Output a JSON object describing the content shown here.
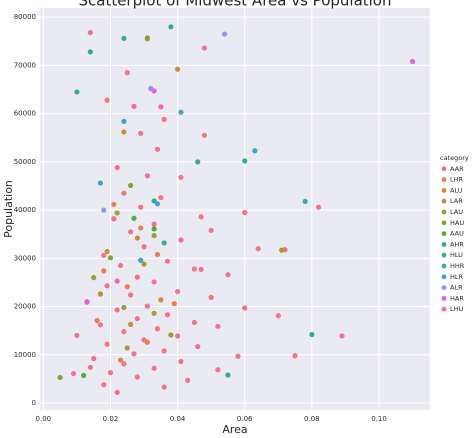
{
  "chart_data": {
    "type": "scatter",
    "title": "Scatterplot of Midwest Area vs Population",
    "x_label": "Area",
    "y_label": "Population",
    "legend_title": "category",
    "legend_position": "right",
    "grid": true,
    "xlim": [
      -0.001,
      0.1152
    ],
    "ylim": [
      -1450,
      81900
    ],
    "xticks": [
      {
        "value": 0,
        "label": "0.00"
      },
      {
        "value": 0.02,
        "label": "0.02"
      },
      {
        "value": 0.04,
        "label": "0.04"
      },
      {
        "value": 0.06,
        "label": "0.06"
      },
      {
        "value": 0.08,
        "label": "0.08"
      },
      {
        "value": 0.1,
        "label": "0.10"
      }
    ],
    "yticks": [
      0,
      10000,
      20000,
      30000,
      40000,
      50000,
      60000,
      70000,
      80000
    ],
    "series": [
      {
        "name": "AAR",
        "color": "#f77189",
        "x": [
          0.014,
          0.031,
          0.048,
          0.025,
          0.019,
          0.027,
          0.036,
          0.029,
          0.048,
          0.034,
          0.022,
          0.031,
          0.041,
          0.024,
          0.035,
          0.029,
          0.047,
          0.06,
          0.082,
          0.021,
          0.033,
          0.026,
          0.05,
          0.041,
          0.03,
          0.064,
          0.072,
          0.018,
          0.037,
          0.023,
          0.045,
          0.028,
          0.055,
          0.033,
          0.019,
          0.04,
          0.026,
          0.05,
          0.013,
          0.031,
          0.06,
          0.022,
          0.037,
          0.07,
          0.028,
          0.045,
          0.017,
          0.034,
          0.052,
          0.024,
          0.04,
          0.01,
          0.089,
          0.03,
          0.019,
          0.046,
          0.036,
          0.027,
          0.058,
          0.075,
          0.015,
          0.041,
          0.024,
          0.014,
          0.033,
          0.052,
          0.02,
          0.009,
          0.028,
          0.043,
          0.018,
          0.036,
          0.022,
          0.047
        ],
        "values": [
          76800,
          75500,
          73600,
          68500,
          62800,
          61500,
          58800,
          55900,
          55500,
          52600,
          48800,
          47100,
          46800,
          43500,
          42600,
          40600,
          38600,
          39500,
          40600,
          38200,
          37100,
          35500,
          35800,
          33800,
          32400,
          32000,
          31800,
          30600,
          29400,
          28500,
          27800,
          26100,
          26600,
          25100,
          24300,
          23100,
          22400,
          21900,
          21000,
          20100,
          19700,
          19300,
          18300,
          18100,
          17500,
          16700,
          16200,
          15400,
          15900,
          14800,
          13900,
          14000,
          13900,
          13100,
          12200,
          11700,
          10800,
          10200,
          9700,
          9800,
          9200,
          8600,
          8100,
          7400,
          7200,
          6900,
          6300,
          6100,
          5400,
          4700,
          3800,
          3300,
          2200,
          27700
        ]
      },
      {
        "name": "LHR",
        "color": "#ee7d4a",
        "x": [
          0.021,
          0.029,
          0.034,
          0.018,
          0.025,
          0.039,
          0.016,
          0.031,
          0.023
        ],
        "values": [
          41200,
          36300,
          30800,
          27400,
          24100,
          20600,
          17100,
          12600,
          8900
        ]
      },
      {
        "name": "ALU",
        "color": "#d18b31",
        "x": [
          0.04,
          0.024,
          0.028,
          0.019,
          0.035,
          0.026
        ],
        "values": [
          69200,
          56200,
          34200,
          31400,
          21400,
          16300
        ]
      },
      {
        "name": "LAR",
        "color": "#b39631",
        "x": [
          0.022,
          0.03,
          0.017,
          0.033,
          0.025
        ],
        "values": [
          39400,
          28800,
          22600,
          18600,
          11400
        ]
      },
      {
        "name": "LAU",
        "color": "#9a9f31",
        "x": [
          0.015,
          0.033,
          0.024,
          0.071,
          0.038
        ],
        "values": [
          26000,
          34700,
          19800,
          31700,
          14100
        ]
      },
      {
        "name": "HAU",
        "color": "#7fa731",
        "x": [
          0.031,
          0.005,
          0.026,
          0.02
        ],
        "values": [
          75700,
          5300,
          45100,
          30100
        ]
      },
      {
        "name": "AAU",
        "color": "#4fb031",
        "x": [
          0.027,
          0.012,
          0.033
        ],
        "values": [
          38300,
          5700,
          36100
        ]
      },
      {
        "name": "AHR",
        "color": "#34ae89",
        "x": [
          0.014,
          0.038,
          0.046,
          0.033,
          0.055,
          0.08
        ],
        "values": [
          72800,
          78000,
          50000,
          41900,
          5800,
          14200
        ]
      },
      {
        "name": "HLU",
        "color": "#36ada0",
        "x": [
          0.01,
          0.024,
          0.06,
          0.078,
          0.036
        ],
        "values": [
          64500,
          75600,
          50200,
          41800,
          33200
        ]
      },
      {
        "name": "HHR",
        "color": "#38aabb",
        "x": [
          0.063,
          0.017,
          0.041
        ],
        "values": [
          52300,
          45600,
          60300
        ]
      },
      {
        "name": "HLR",
        "color": "#3ba3db",
        "x": [
          0.024,
          0.034,
          0.029
        ],
        "values": [
          58400,
          41300,
          29600
        ]
      },
      {
        "name": "ALR",
        "color": "#8f93f4",
        "x": [
          0.054,
          0.032,
          0.018
        ],
        "values": [
          76500,
          65200,
          40000
        ]
      },
      {
        "name": "HAR",
        "color": "#e55df1",
        "x": [
          0.11,
          0.033,
          0.013
        ],
        "values": [
          70800,
          64700,
          20900
        ]
      },
      {
        "name": "LHU",
        "color": "#f562c0",
        "x": [
          0.035,
          0.022
        ],
        "values": [
          61400,
          25300
        ]
      }
    ]
  }
}
